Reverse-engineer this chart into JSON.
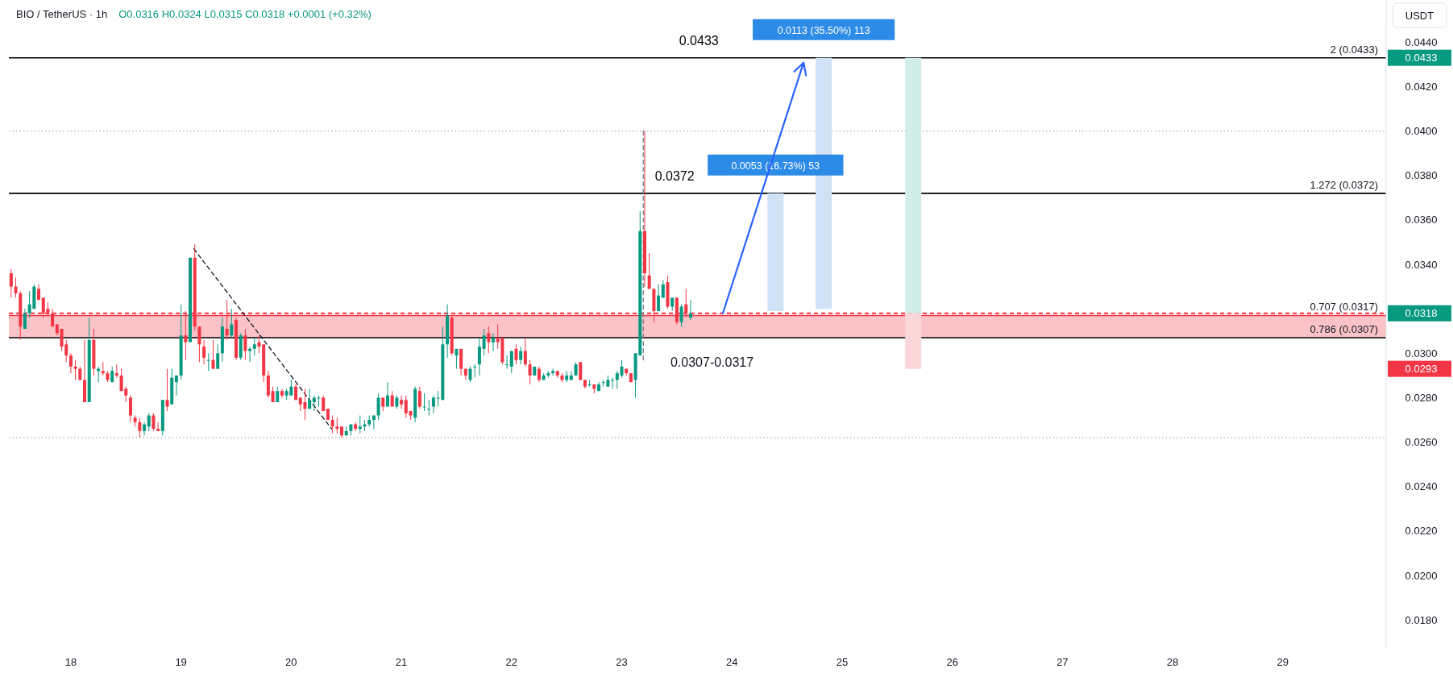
{
  "chart_data": {
    "type": "candlestick",
    "title": "BIO / TetherUS · 1h",
    "subtitle": "O0.0316 H0.0324 L0.0315 C0.0318 +0.0001 (+0.32%)",
    "ylabel": "USDT",
    "colors": [
      "#f23645",
      "#f23645",
      "#f23645",
      "#089981",
      "#089981",
      "#089981",
      "#f23645",
      "#f23645",
      "#f23645",
      "#f23645",
      "#f23645",
      "#f23645",
      "#f23645",
      "#f23645",
      "#f23645",
      "#f23645",
      "#f23645",
      "#089981",
      "#f23645",
      "#089981",
      "#f23645",
      "#f23645",
      "#089981",
      "#f23645",
      "#f23645",
      "#f23645",
      "#f23645",
      "#f23645",
      "#f23645",
      "#089981",
      "#089981",
      "#f23645",
      "#f23645",
      "#089981",
      "#f23645",
      "#089981",
      "#089981",
      "#089981",
      "#f23645",
      "#089981",
      "#f23645",
      "#f23645",
      "#f23645",
      "#089981",
      "#f23645",
      "#089981",
      "#089981",
      "#f23645",
      "#089981",
      "#f23645",
      "#089981",
      "#f23645",
      "#089981",
      "#089981",
      "#f23645",
      "#f23645",
      "#f23645",
      "#f23645",
      "#089981",
      "#f23645",
      "#089981",
      "#089981",
      "#f23645",
      "#f23645",
      "#f23645",
      "#089981",
      "#089981",
      "#089981",
      "#f23645",
      "#f23645",
      "#f23645",
      "#f23645",
      "#f23645",
      "#089981",
      "#089981",
      "#f23645",
      "#089981",
      "#089981",
      "#089981",
      "#089981",
      "#089981",
      "#f23645",
      "#089981",
      "#f23645",
      "#089981",
      "#f23645",
      "#f23645",
      "#f23645",
      "#089981",
      "#f23645",
      "#089981",
      "#089981",
      "#089981",
      "#089981",
      "#089981",
      "#089981",
      "#f23645",
      "#089981",
      "#f23645",
      "#f23645",
      "#089981",
      "#089981",
      "#089981",
      "#089981",
      "#f23645",
      "#089981",
      "#f23645",
      "#f23645",
      "#089981",
      "#089981",
      "#f23645",
      "#089981",
      "#f23645",
      "#f23645",
      "#089981",
      "#f23645",
      "#089981",
      "#089981",
      "#089981",
      "#f23645",
      "#f23645",
      "#089981",
      "#089981",
      "#089981",
      "#f23645",
      "#f23645",
      "#089981",
      "#f23645",
      "#089981",
      "#089981",
      "#089981",
      "#089981",
      "#089981",
      "#089981",
      "#f23645",
      "#f23645",
      "#089981",
      "#089981",
      "#f23645",
      "#f23645",
      "#f23645",
      "#089981",
      "#089981",
      "#f23645",
      "#089981",
      "#f23645",
      "#089981",
      "#f23645",
      "#089981"
    ],
    "x": [
      17.4583,
      17.5,
      17.5417,
      17.5833,
      17.625,
      17.6667,
      17.7083,
      17.75,
      17.7917,
      17.8333,
      17.875,
      17.9167,
      17.9583,
      18,
      18.0417,
      18.0833,
      18.125,
      18.1667,
      18.2083,
      18.25,
      18.2917,
      18.3333,
      18.375,
      18.4167,
      18.4583,
      18.5,
      18.5417,
      18.5833,
      18.625,
      18.6667,
      18.7083,
      18.75,
      18.7917,
      18.8333,
      18.875,
      18.9167,
      18.9583,
      19,
      19.0417,
      19.0833,
      19.125,
      19.1667,
      19.2083,
      19.25,
      19.2917,
      19.3333,
      19.375,
      19.4167,
      19.4583,
      19.5,
      19.5417,
      19.5833,
      19.625,
      19.6667,
      19.7083,
      19.75,
      19.7917,
      19.8333,
      19.875,
      19.9167,
      19.9583,
      20,
      20.0417,
      20.0833,
      20.125,
      20.1667,
      20.2083,
      20.25,
      20.2917,
      20.3333,
      20.375,
      20.4167,
      20.4583,
      20.5,
      20.5417,
      20.5833,
      20.625,
      20.6667,
      20.7083,
      20.75,
      20.7917,
      20.8333,
      20.875,
      20.9167,
      20.9583,
      21,
      21.0417,
      21.0833,
      21.125,
      21.1667,
      21.2083,
      21.25,
      21.2917,
      21.3333,
      21.375,
      21.4167,
      21.4583,
      21.5,
      21.5417,
      21.5833,
      21.625,
      21.6667,
      21.7083,
      21.75,
      21.7917,
      21.8333,
      21.875,
      21.9167,
      21.9583,
      22,
      22.0417,
      22.0833,
      22.125,
      22.1667,
      22.2083,
      22.25,
      22.2917,
      22.3333,
      22.375,
      22.4167,
      22.4583,
      22.5,
      22.5417,
      22.5833,
      22.625,
      22.6667,
      22.7083,
      22.75,
      22.7917,
      22.8333,
      22.875,
      22.9167,
      22.9583,
      23,
      23.0417,
      23.0833,
      23.125,
      23.1667,
      23.2083,
      23.25,
      23.2917,
      23.3333,
      23.375,
      23.4167,
      23.4583,
      23.5,
      23.5417,
      23.5833,
      23.625
    ],
    "ohlc": [
      [
        0.0336,
        0.0338,
        0.0325,
        0.033
      ],
      [
        0.033,
        0.0334,
        0.0325,
        0.0327
      ],
      [
        0.0327,
        0.0328,
        0.0306,
        0.0312
      ],
      [
        0.0311,
        0.032,
        0.0311,
        0.0318
      ],
      [
        0.0318,
        0.0328,
        0.0316,
        0.0322
      ],
      [
        0.032,
        0.0331,
        0.032,
        0.033
      ],
      [
        0.0329,
        0.0331,
        0.0324,
        0.0324
      ],
      [
        0.0325,
        0.0325,
        0.0316,
        0.0318
      ],
      [
        0.032,
        0.0323,
        0.0317,
        0.0318
      ],
      [
        0.0318,
        0.032,
        0.0312,
        0.0312
      ],
      [
        0.0313,
        0.0313,
        0.0308,
        0.0309
      ],
      [
        0.0311,
        0.0311,
        0.0301,
        0.0303
      ],
      [
        0.0304,
        0.0306,
        0.0296,
        0.0299
      ],
      [
        0.0299,
        0.03,
        0.0291,
        0.0294
      ],
      [
        0.0294,
        0.0297,
        0.0288,
        0.0293
      ],
      [
        0.0293,
        0.0294,
        0.0288,
        0.0288
      ],
      [
        0.0288,
        0.0306,
        0.0278,
        0.0278
      ],
      [
        0.0278,
        0.0316,
        0.0278,
        0.0306
      ],
      [
        0.0306,
        0.0311,
        0.029,
        0.0293
      ],
      [
        0.0292,
        0.0294,
        0.0287,
        0.0293
      ],
      [
        0.0292,
        0.0296,
        0.029,
        0.0291
      ],
      [
        0.0291,
        0.0292,
        0.0287,
        0.0288
      ],
      [
        0.0287,
        0.0294,
        0.0287,
        0.0292
      ],
      [
        0.0291,
        0.0295,
        0.0289,
        0.029
      ],
      [
        0.029,
        0.0293,
        0.0283,
        0.0283
      ],
      [
        0.0284,
        0.0285,
        0.0278,
        0.0281
      ],
      [
        0.028,
        0.0281,
        0.0269,
        0.0272
      ],
      [
        0.0271,
        0.0272,
        0.0267,
        0.0269
      ],
      [
        0.0269,
        0.0271,
        0.0262,
        0.0265
      ],
      [
        0.0265,
        0.0269,
        0.0263,
        0.0268
      ],
      [
        0.0267,
        0.0273,
        0.0265,
        0.0272
      ],
      [
        0.0272,
        0.0273,
        0.0265,
        0.0266
      ],
      [
        0.0266,
        0.0269,
        0.0265,
        0.0265
      ],
      [
        0.0265,
        0.0279,
        0.0263,
        0.0279
      ],
      [
        0.0279,
        0.0293,
        0.0274,
        0.0276
      ],
      [
        0.0277,
        0.0293,
        0.0277,
        0.0289
      ],
      [
        0.0287,
        0.029,
        0.0281,
        0.029
      ],
      [
        0.029,
        0.0322,
        0.0288,
        0.0308
      ],
      [
        0.0308,
        0.0319,
        0.0297,
        0.0305
      ],
      [
        0.0305,
        0.0343,
        0.0305,
        0.0343
      ],
      [
        0.0343,
        0.0349,
        0.031,
        0.0312
      ],
      [
        0.0312,
        0.0312,
        0.0296,
        0.0304
      ],
      [
        0.0303,
        0.0306,
        0.0295,
        0.0298
      ],
      [
        0.0297,
        0.03,
        0.0292,
        0.0297
      ],
      [
        0.0297,
        0.0306,
        0.0293,
        0.0293
      ],
      [
        0.0293,
        0.0304,
        0.0293,
        0.03
      ],
      [
        0.03,
        0.0316,
        0.0296,
        0.0312
      ],
      [
        0.0311,
        0.0324,
        0.0306,
        0.0308
      ],
      [
        0.0308,
        0.032,
        0.0307,
        0.0313
      ],
      [
        0.0315,
        0.0316,
        0.0297,
        0.0298
      ],
      [
        0.0298,
        0.0309,
        0.0297,
        0.0308
      ],
      [
        0.0308,
        0.0311,
        0.0297,
        0.0301
      ],
      [
        0.0301,
        0.0303,
        0.0296,
        0.0302
      ],
      [
        0.0302,
        0.0307,
        0.0299,
        0.0304
      ],
      [
        0.0305,
        0.0308,
        0.03,
        0.0303
      ],
      [
        0.0304,
        0.0304,
        0.0287,
        0.029
      ],
      [
        0.029,
        0.0292,
        0.028,
        0.0281
      ],
      [
        0.0283,
        0.0285,
        0.0278,
        0.0278
      ],
      [
        0.0278,
        0.0285,
        0.0278,
        0.0283
      ],
      [
        0.0283,
        0.0284,
        0.028,
        0.0281
      ],
      [
        0.0281,
        0.0284,
        0.0279,
        0.0283
      ],
      [
        0.0281,
        0.0288,
        0.0281,
        0.0285
      ],
      [
        0.0285,
        0.0286,
        0.0279,
        0.0279
      ],
      [
        0.028,
        0.028,
        0.0274,
        0.0277
      ],
      [
        0.0278,
        0.0284,
        0.027,
        0.0275
      ],
      [
        0.0275,
        0.0284,
        0.0275,
        0.0279
      ],
      [
        0.0278,
        0.0281,
        0.0274,
        0.028
      ],
      [
        0.028,
        0.0281,
        0.0276,
        0.028
      ],
      [
        0.028,
        0.0281,
        0.0274,
        0.0274
      ],
      [
        0.0275,
        0.0275,
        0.027,
        0.027
      ],
      [
        0.027,
        0.0272,
        0.0264,
        0.0267
      ],
      [
        0.0267,
        0.0271,
        0.0264,
        0.0266
      ],
      [
        0.0267,
        0.0267,
        0.0262,
        0.0263
      ],
      [
        0.0263,
        0.0267,
        0.0263,
        0.0265
      ],
      [
        0.0265,
        0.0268,
        0.0263,
        0.0268
      ],
      [
        0.0268,
        0.0269,
        0.0265,
        0.0266
      ],
      [
        0.0266,
        0.0272,
        0.0264,
        0.0267
      ],
      [
        0.0267,
        0.027,
        0.0265,
        0.0268
      ],
      [
        0.0268,
        0.0272,
        0.0267,
        0.027
      ],
      [
        0.027,
        0.0272,
        0.0266,
        0.0272
      ],
      [
        0.0272,
        0.0282,
        0.027,
        0.028
      ],
      [
        0.028,
        0.028,
        0.0274,
        0.0276
      ],
      [
        0.0276,
        0.0287,
        0.0276,
        0.0281
      ],
      [
        0.0281,
        0.0283,
        0.0276,
        0.0276
      ],
      [
        0.0276,
        0.0281,
        0.0275,
        0.028
      ],
      [
        0.0279,
        0.0281,
        0.0275,
        0.0277
      ],
      [
        0.0279,
        0.0281,
        0.0271,
        0.0273
      ],
      [
        0.0274,
        0.0274,
        0.027,
        0.0272
      ],
      [
        0.0271,
        0.0285,
        0.0269,
        0.0284
      ],
      [
        0.0283,
        0.0285,
        0.0275,
        0.0276
      ],
      [
        0.0276,
        0.0282,
        0.0274,
        0.0276
      ],
      [
        0.0275,
        0.0279,
        0.0272,
        0.0275
      ],
      [
        0.0276,
        0.0281,
        0.0273,
        0.028
      ],
      [
        0.028,
        0.0283,
        0.0276,
        0.028
      ],
      [
        0.0279,
        0.0312,
        0.0279,
        0.0304
      ],
      [
        0.0304,
        0.0322,
        0.0298,
        0.0317
      ],
      [
        0.0316,
        0.0317,
        0.0299,
        0.03
      ],
      [
        0.0299,
        0.0302,
        0.0293,
        0.0302
      ],
      [
        0.0302,
        0.0302,
        0.029,
        0.0293
      ],
      [
        0.0293,
        0.0293,
        0.0288,
        0.029
      ],
      [
        0.0288,
        0.0294,
        0.0287,
        0.0293
      ],
      [
        0.0294,
        0.0295,
        0.0289,
        0.0294
      ],
      [
        0.0295,
        0.0307,
        0.029,
        0.0303
      ],
      [
        0.0302,
        0.0311,
        0.0299,
        0.0308
      ],
      [
        0.0309,
        0.0312,
        0.03,
        0.0305
      ],
      [
        0.0305,
        0.0309,
        0.0301,
        0.0307
      ],
      [
        0.0307,
        0.0313,
        0.0302,
        0.0305
      ],
      [
        0.0307,
        0.0307,
        0.0295,
        0.0296
      ],
      [
        0.0295,
        0.0299,
        0.0293,
        0.0295
      ],
      [
        0.0294,
        0.0301,
        0.0291,
        0.0301
      ],
      [
        0.0302,
        0.0304,
        0.0295,
        0.0297
      ],
      [
        0.0297,
        0.0303,
        0.0295,
        0.0301
      ],
      [
        0.0301,
        0.0307,
        0.0294,
        0.0295
      ],
      [
        0.0295,
        0.0297,
        0.0286,
        0.029
      ],
      [
        0.029,
        0.0294,
        0.029,
        0.0294
      ],
      [
        0.0293,
        0.0294,
        0.0287,
        0.0288
      ],
      [
        0.0288,
        0.0291,
        0.0288,
        0.029
      ],
      [
        0.029,
        0.0292,
        0.0289,
        0.0291
      ],
      [
        0.0291,
        0.0293,
        0.029,
        0.0292
      ],
      [
        0.0292,
        0.0292,
        0.0289,
        0.029
      ],
      [
        0.029,
        0.0291,
        0.0287,
        0.0288
      ],
      [
        0.0288,
        0.0292,
        0.0287,
        0.029
      ],
      [
        0.0288,
        0.0292,
        0.0288,
        0.029
      ],
      [
        0.029,
        0.0296,
        0.029,
        0.0295
      ],
      [
        0.0296,
        0.0296,
        0.0288,
        0.0288
      ],
      [
        0.0288,
        0.0288,
        0.0284,
        0.0285
      ],
      [
        0.0286,
        0.0288,
        0.0285,
        0.0286
      ],
      [
        0.0286,
        0.0286,
        0.0282,
        0.0284
      ],
      [
        0.0283,
        0.0287,
        0.0283,
        0.0286
      ],
      [
        0.0287,
        0.0288,
        0.0285,
        0.0287
      ],
      [
        0.0285,
        0.029,
        0.0285,
        0.0288
      ],
      [
        0.0288,
        0.0289,
        0.0284,
        0.0288
      ],
      [
        0.0288,
        0.0292,
        0.0284,
        0.0291
      ],
      [
        0.029,
        0.0297,
        0.0289,
        0.0294
      ],
      [
        0.0293,
        0.0293,
        0.029,
        0.0291
      ],
      [
        0.0291,
        0.0291,
        0.0287,
        0.0287
      ],
      [
        0.0288,
        0.03,
        0.028,
        0.03
      ],
      [
        0.0299,
        0.0364,
        0.0299,
        0.0355
      ],
      [
        0.0355,
        0.04,
        0.033,
        0.0336
      ],
      [
        0.0335,
        0.0345,
        0.0329,
        0.0329
      ],
      [
        0.0329,
        0.0329,
        0.0314,
        0.0319
      ],
      [
        0.0319,
        0.0331,
        0.0319,
        0.0326
      ],
      [
        0.0325,
        0.0333,
        0.0325,
        0.0331
      ],
      [
        0.0332,
        0.0335,
        0.032,
        0.0321
      ],
      [
        0.0321,
        0.0325,
        0.0319,
        0.0325
      ],
      [
        0.0325,
        0.0325,
        0.0313,
        0.0314
      ],
      [
        0.0314,
        0.0322,
        0.0312,
        0.0321
      ],
      [
        0.0322,
        0.0329,
        0.0316,
        0.0318
      ],
      [
        0.0316,
        0.0324,
        0.0315,
        0.0318
      ]
    ],
    "series": [
      {
        "type": "line",
        "x": [
          19.1167,
          20.3667
        ],
        "values": [
          0.0347,
          0.0266
        ],
        "color": "#131722",
        "line_style": "dashed"
      },
      {
        "type": "line",
        "x": [
          23.1958,
          23.1958
        ],
        "values": [
          0.0297,
          0.04
        ],
        "color": "#787b86",
        "line_style": "dashed"
      },
      {
        "type": "bar",
        "x": [
          24.3958,
          24.8333
        ],
        "base": [
          0.0319,
          0.032
        ],
        "values": [
          0.0053,
          0.0113
        ],
        "colors": [
          "#cfe2f6",
          "#cfe2f6"
        ],
        "value_labels": [
          "0.0053 (16.73%) 53",
          "0.0113 (35.50%) 113"
        ]
      },
      {
        "type": "bar",
        "x": [
          25.6458
        ],
        "base": [
          0.0318
        ],
        "values": [
          0.0115
        ],
        "colors": [
          "#d1ede7"
        ]
      },
      {
        "type": "bar",
        "x": [
          25.6458
        ],
        "base": [
          0.0293
        ],
        "values": [
          0.0025
        ],
        "colors": [
          "#fbd6d9"
        ]
      }
    ],
    "bands": [
      {
        "axis": "y",
        "from": 0.0307,
        "to": 0.0317,
        "label": "0.0307-0.0317",
        "color": "#f23645"
      }
    ],
    "ref_lines": [
      {
        "axis": "y",
        "value": 0.0433,
        "label": "2 (0.0433)",
        "line_style": "solid"
      },
      {
        "axis": "y",
        "value": 0.0372,
        "label": "1.272 (0.0372)",
        "line_style": "solid"
      },
      {
        "axis": "y",
        "value": 0.0317,
        "label": "0.707 (0.0317)",
        "line_style": "solid",
        "color": "#f23645"
      },
      {
        "axis": "y",
        "value": 0.0307,
        "label": "0.786 (0.0307)",
        "line_style": "solid"
      },
      {
        "axis": "y",
        "value": 0.04,
        "line_style": "dotted",
        "color": "#9598a1"
      },
      {
        "axis": "y",
        "value": 0.0262,
        "line_style": "dotted",
        "color": "#9598a1"
      },
      {
        "axis": "y",
        "value": 0.0318,
        "line_style": "dashed",
        "color": "#f23645"
      }
    ],
    "annotations": [
      {
        "text": "0.0433",
        "x": 23.7,
        "y": 0.0433
      },
      {
        "text": "0.0372",
        "x": 23.48,
        "y": 0.0372
      }
    ],
    "xlim": [
      17.4375,
      29.9375
    ],
    "ylim": [
      0.0167,
      0.0459
    ],
    "xticks": [
      18,
      19,
      20,
      21,
      22,
      23,
      24,
      25,
      26,
      27,
      28,
      29
    ],
    "yticks": [
      {
        "value": 0.018,
        "label": "0.0180"
      },
      {
        "value": 0.02,
        "label": "0.0200"
      },
      {
        "value": 0.022,
        "label": "0.0220"
      },
      {
        "value": 0.024,
        "label": "0.0240"
      },
      {
        "value": 0.026,
        "label": "0.0260"
      },
      {
        "value": 0.028,
        "label": "0.0280"
      },
      {
        "value": 0.0293,
        "label": "0.0293"
      },
      {
        "value": 0.03,
        "label": "0.0300"
      },
      {
        "value": 0.0318,
        "label": "0.0318"
      },
      {
        "value": 0.034,
        "label": "0.0340"
      },
      {
        "value": 0.036,
        "label": "0.0360"
      },
      {
        "value": 0.038,
        "label": "0.0380"
      },
      {
        "value": 0.04,
        "label": "0.0400"
      },
      {
        "value": 0.042,
        "label": "0.0420"
      },
      {
        "value": 0.0433,
        "label": "0.0433"
      },
      {
        "value": 0.044,
        "label": "0.0440"
      }
    ]
  }
}
